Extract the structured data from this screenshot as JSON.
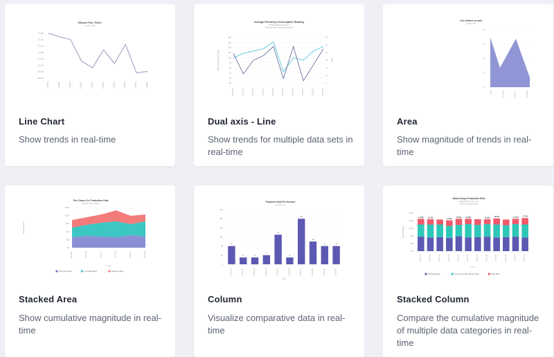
{
  "cards": [
    {
      "name": "line-chart-card",
      "title": "Line Chart",
      "description": "Show trends in real-time",
      "thumbnail": {
        "title": "Bitcoin Price Ticker",
        "subtitle": "Across USD",
        "y_ticks": [
          "$7.30K",
          "$7.20K",
          "$7.15K",
          "$7.10K",
          "$7.05K",
          "$7.00K",
          "$6.95K",
          "$6.90K"
        ],
        "x_ticks": [
          "13:55:56",
          "13:55:58",
          "13:55:59",
          "13:56:00",
          "13:56:01",
          "13:56:02",
          "13:56:03",
          "13:56:04",
          "13:56:05",
          "13:56:06"
        ]
      }
    },
    {
      "name": "dual-axis-line-card",
      "title": "Dual axis - Line",
      "description": "Show trends for multiple data sets in real-time",
      "thumbnail": {
        "title": "Average Electricity Consumption Reading",
        "subtitle": "Nikhilla Village Apartment",
        "subtitle2": "Rate per watt is cents (computed)",
        "y_left_ticks": [
          "$18",
          "$16",
          "$14",
          "$12",
          "$10",
          "$8",
          "$6",
          "$4",
          "$2",
          "$0"
        ],
        "y_right_ticks": [
          "60",
          "50",
          "40",
          "30",
          "20",
          "10",
          "0"
        ],
        "y_left_label": "Rate (cents/Kilowatt Hour)",
        "y_right_label": "Watts",
        "x_ticks": [
          "13:51:36",
          "13:51:41",
          "13:51:46",
          "13:51:51",
          "13:51:56",
          "13:52:01",
          "13:52:06",
          "13:52:11",
          "13:52:16",
          "13:52:21"
        ]
      }
    },
    {
      "name": "area-chart-card",
      "title": "Area",
      "description": "Show magnitude of trends in real-time",
      "thumbnail": {
        "title": "Live visitors on web",
        "subtitle": "Across USA",
        "y_ticks": [
          "40",
          "30",
          "20",
          "10",
          "0"
        ],
        "x_ticks": [
          "Start",
          "13:51:46",
          "13:51:51",
          "13:51:56"
        ]
      }
    },
    {
      "name": "stacked-area-card",
      "title": "Stacked Area",
      "description": "Show cumulative magnitude in real-time",
      "thumbnail": {
        "title": "The Clorox Co. Production Rate",
        "subtitle": "Product: Plant (Green)",
        "y_ticks": [
          "$15K",
          "$12K",
          "$9K",
          "$6K",
          "$3K",
          "$0"
        ],
        "y_label": "Units Produced",
        "x_label": "Time",
        "x_ticks": [
          "Day Start",
          "13:51:46",
          "13:51:51",
          "13:51:56",
          "13:52:01",
          "13:52:06"
        ],
        "legend": [
          "Wyoming Plant",
          "Louisville Plant",
          "Western Plant"
        ]
      }
    },
    {
      "name": "column-chart-card",
      "title": "Column",
      "description": "Visualize comparative data in real-time",
      "thumbnail": {
        "title": "Products Sold Per Second",
        "subtitle": "Amazon.com",
        "y_ticks": [
          "$24",
          "$20",
          "$16",
          "$12",
          "$8",
          "$4",
          "0"
        ],
        "x_label": "Time",
        "x_ticks": [
          "13:51:51",
          "13:51:52",
          "13:51:53",
          "13:51:54",
          "13:51:55",
          "13:51:56",
          "13:51:57",
          "13:51:58",
          "13:51:59",
          "13:52:00"
        ],
        "values": [
          8,
          3,
          3,
          4,
          13,
          3,
          20,
          10,
          8,
          8
        ]
      }
    },
    {
      "name": "stacked-column-card",
      "title": "Stacked Column",
      "description": "Compare the cumulative magnitude of multiple data categories in real-time",
      "thumbnail": {
        "title": "Altria Group Production Rate",
        "subtitle": "Philip Morris & Co., Ltd.",
        "subtitle2": "Product: English Posts",
        "y_ticks": [
          "$20K",
          "$16K",
          "$12K",
          "$8K",
          "$4K",
          "$0"
        ],
        "y_label": "Units Produced",
        "x_label": "Time",
        "x_ticks": [
          "13:51:51",
          "13:51:52",
          "13:51:53",
          "13:51:54",
          "13:51:55",
          "13:51:56",
          "13:51:57",
          "13:51:58",
          "13:51:59",
          "13:52:00",
          "13:52:01",
          "13:52:02"
        ],
        "totals": [
          "17,096",
          "17,356",
          "",
          "15,856",
          "16,569",
          "18,098",
          "",
          "15,089",
          "18,028",
          "",
          "17,108",
          "17,758"
        ],
        "legend": [
          "Richfield Plant",
          "Crazy Mountain Ranch Plant",
          "Pala Hills"
        ]
      }
    }
  ],
  "colors": {
    "purple": "#6f6fbf",
    "purple_light": "#8a8fd4",
    "teal": "#3cc6c4",
    "teal_light": "#59cbd3",
    "salmon": "#f37b7b",
    "line_gray": "#a6a9c6",
    "blue_light": "#6fd0e2",
    "stack_purple": "#5c59b3",
    "stack_teal": "#2ec7b7",
    "stack_red": "#ef5a6b"
  }
}
